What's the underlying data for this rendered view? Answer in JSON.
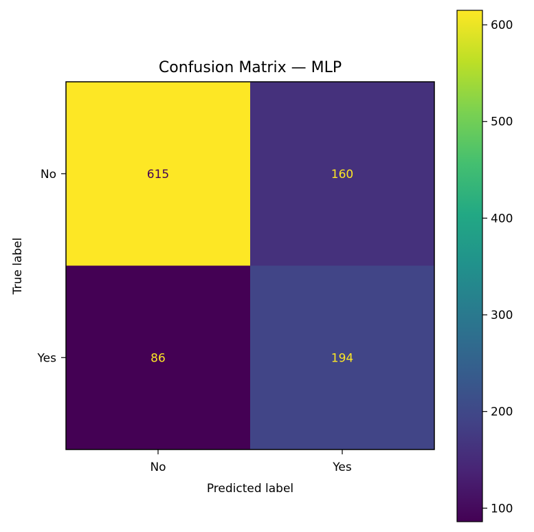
{
  "chart_data": {
    "type": "heatmap",
    "title": "Confusion Matrix — MLP",
    "xlabel": "Predicted label",
    "ylabel": "True label",
    "x_categories": [
      "No",
      "Yes"
    ],
    "y_categories": [
      "No",
      "Yes"
    ],
    "values": [
      [
        615,
        160
      ],
      [
        86,
        194
      ]
    ],
    "colormap": "viridis",
    "colorbar": {
      "range": [
        86,
        615
      ],
      "ticks": [
        "100",
        "200",
        "300",
        "400",
        "500",
        "600"
      ]
    },
    "text_colors": {
      "on_bright": "#440154",
      "on_dark": "#fde725"
    },
    "grid": false
  }
}
